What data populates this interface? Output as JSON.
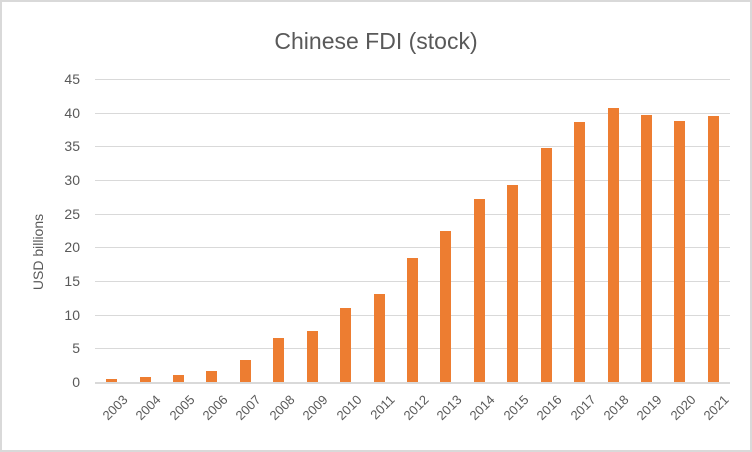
{
  "chart_data": {
    "type": "bar",
    "title": "Chinese FDI (stock)",
    "ylabel": "USD billions",
    "xlabel": "",
    "categories": [
      "2003",
      "2004",
      "2005",
      "2006",
      "2007",
      "2008",
      "2009",
      "2010",
      "2011",
      "2012",
      "2013",
      "2014",
      "2015",
      "2016",
      "2017",
      "2018",
      "2019",
      "2020",
      "2021"
    ],
    "values": [
      0.5,
      0.7,
      1.0,
      1.7,
      3.3,
      6.6,
      7.6,
      11.0,
      13.1,
      18.4,
      22.4,
      27.2,
      29.3,
      34.8,
      38.6,
      40.7,
      39.7,
      38.8,
      39.5
    ],
    "ylim": [
      0,
      45
    ],
    "ytick_step": 5,
    "grid": "horizontal",
    "legend": "none",
    "bar_color": "#ED7D31",
    "text_color": "#595959",
    "gridline_color": "#D9D9D9",
    "frame_color": "#D9D9D9",
    "background_color": "#FFFFFF"
  }
}
